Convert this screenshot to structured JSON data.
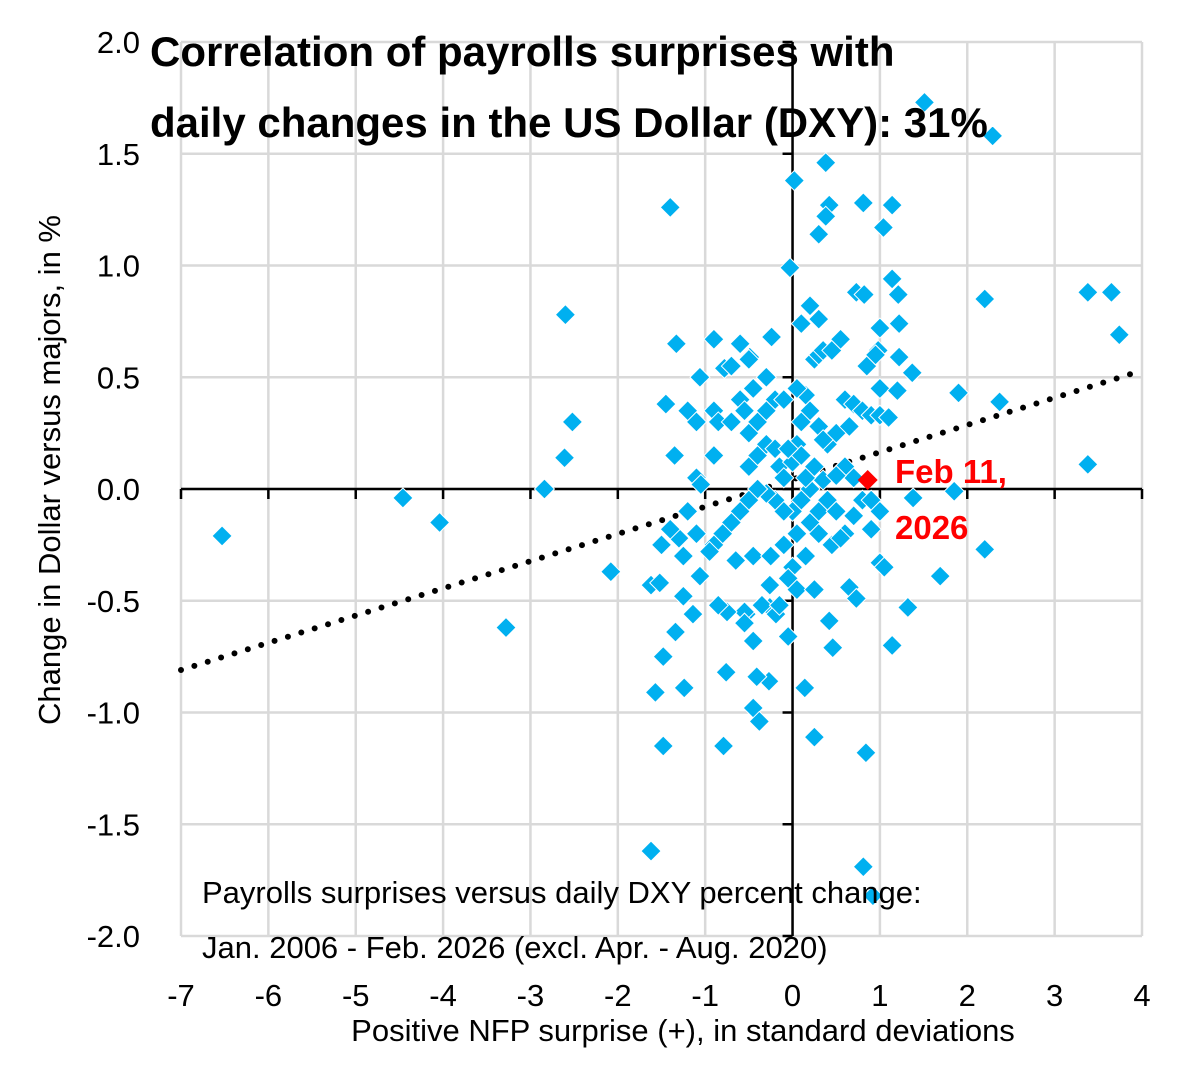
{
  "chart_data": {
    "type": "scatter",
    "title_lines": [
      "Correlation of payrolls surprises with",
      "daily changes in the US Dollar (DXY): 31%"
    ],
    "xlabel": "Positive NFP surprise (+), in standard deviations",
    "ylabel": "Change in Dollar versus majors, in %",
    "note_lines": [
      "Payrolls surprises versus daily DXY percent change:",
      "Jan. 2006 - Feb. 2026 (excl. Apr. - Aug. 2020)"
    ],
    "xlim": [
      -7,
      4
    ],
    "ylim": [
      -2.0,
      2.0
    ],
    "xticks": [
      "-7",
      "-6",
      "-5",
      "-4",
      "-3",
      "-2",
      "-1",
      "0",
      "1",
      "2",
      "3",
      "4"
    ],
    "yticks": [
      "2.0",
      "1.5",
      "1.0",
      "0.5",
      "0.0",
      "-0.5",
      "-1.0",
      "-1.5",
      "-2.0"
    ],
    "grid": true,
    "marker_color": "#00B0F0",
    "highlight_color": "#FF0000",
    "trendline": {
      "style": "dotted",
      "color": "#000000",
      "from": [
        -7,
        -0.81
      ],
      "to": [
        4,
        0.53
      ]
    },
    "highlight": {
      "label_lines": [
        "Feb 11,",
        "2026"
      ],
      "x": 0.86,
      "y": 0.04
    },
    "points": [
      [
        -6.53,
        -0.21
      ],
      [
        -4.46,
        -0.04
      ],
      [
        -4.04,
        -0.15
      ],
      [
        -3.28,
        -0.62
      ],
      [
        -2.84,
        0.0
      ],
      [
        -2.61,
        0.14
      ],
      [
        -2.52,
        0.3
      ],
      [
        -2.6,
        0.78
      ],
      [
        -2.08,
        -0.37
      ],
      [
        -1.62,
        -1.62
      ],
      [
        -1.57,
        -0.91
      ],
      [
        -1.48,
        -1.15
      ],
      [
        -1.48,
        -0.75
      ],
      [
        -1.62,
        -0.43
      ],
      [
        -1.52,
        -0.42
      ],
      [
        -1.4,
        1.26
      ],
      [
        -1.45,
        0.38
      ],
      [
        -1.33,
        0.65
      ],
      [
        -1.24,
        -0.89
      ],
      [
        -1.25,
        -0.48
      ],
      [
        -1.34,
        -0.64
      ],
      [
        -1.14,
        -0.56
      ],
      [
        -1.06,
        -0.39
      ],
      [
        -1.06,
        0.5
      ],
      [
        -0.9,
        0.67
      ],
      [
        -0.79,
        -1.15
      ],
      [
        -0.76,
        -0.82
      ],
      [
        -0.78,
        0.54
      ],
      [
        -0.49,
        0.59
      ],
      [
        -0.24,
        0.68
      ],
      [
        -0.45,
        -0.98
      ],
      [
        -0.38,
        -1.04
      ],
      [
        -0.27,
        -0.86
      ],
      [
        -0.41,
        -0.84
      ],
      [
        -0.26,
        -0.43
      ],
      [
        -0.45,
        -0.68
      ],
      [
        -0.53,
        -0.56
      ],
      [
        -0.26,
        -0.53
      ],
      [
        -0.19,
        -0.56
      ],
      [
        0.3,
        1.14
      ],
      [
        0.38,
        1.46
      ],
      [
        0.02,
        1.38
      ],
      [
        0.42,
        1.27
      ],
      [
        0.38,
        1.22
      ],
      [
        0.81,
        1.28
      ],
      [
        1.14,
        1.27
      ],
      [
        1.04,
        1.17
      ],
      [
        -0.03,
        0.99
      ],
      [
        1.14,
        0.94
      ],
      [
        1.21,
        0.87
      ],
      [
        0.73,
        0.88
      ],
      [
        0.82,
        0.87
      ],
      [
        2.2,
        0.85
      ],
      [
        3.38,
        0.88
      ],
      [
        3.65,
        0.88
      ],
      [
        3.74,
        0.69
      ],
      [
        3.38,
        0.11
      ],
      [
        2.37,
        0.39
      ],
      [
        1.9,
        0.43
      ],
      [
        1.37,
        0.52
      ],
      [
        1.22,
        0.74
      ],
      [
        1.22,
        0.59
      ],
      [
        0.98,
        0.62
      ],
      [
        2.2,
        -0.27
      ],
      [
        1.69,
        -0.39
      ],
      [
        1.32,
        -0.53
      ],
      [
        1.14,
        -0.7
      ],
      [
        1.0,
        -0.33
      ],
      [
        0.84,
        -1.18
      ],
      [
        0.81,
        -1.69
      ],
      [
        0.92,
        -1.82
      ],
      [
        0.25,
        -1.11
      ],
      [
        0.14,
        -0.89
      ],
      [
        0.46,
        -0.71
      ],
      [
        0.42,
        -0.59
      ],
      [
        0.65,
        -0.44
      ],
      [
        0.73,
        -0.49
      ],
      [
        1.85,
        -0.01
      ],
      [
        1.38,
        -0.04
      ],
      [
        1.51,
        1.73
      ],
      [
        2.29,
        1.58
      ],
      [
        -1.2,
        0.35
      ],
      [
        -1.1,
        0.3
      ],
      [
        -0.9,
        0.35
      ],
      [
        -0.85,
        0.3
      ],
      [
        -0.7,
        0.3
      ],
      [
        -0.6,
        0.4
      ],
      [
        -0.55,
        0.35
      ],
      [
        -0.5,
        0.25
      ],
      [
        -0.45,
        0.45
      ],
      [
        -0.4,
        0.3
      ],
      [
        -0.3,
        0.5
      ],
      [
        -0.2,
        0.4
      ],
      [
        -0.1,
        0.4
      ],
      [
        -0.6,
        0.65
      ],
      [
        -0.5,
        0.58
      ],
      [
        -0.3,
        0.35
      ],
      [
        -1.35,
        0.15
      ],
      [
        -1.1,
        0.05
      ],
      [
        -0.9,
        0.15
      ],
      [
        -0.5,
        0.1
      ],
      [
        -0.4,
        0.15
      ],
      [
        -0.3,
        0.2
      ],
      [
        -0.2,
        0.18
      ],
      [
        -0.15,
        0.1
      ],
      [
        -0.1,
        0.05
      ],
      [
        0.0,
        0.12
      ],
      [
        0.05,
        0.2
      ],
      [
        0.1,
        0.15
      ],
      [
        0.15,
        0.42
      ],
      [
        0.2,
        0.35
      ],
      [
        0.25,
        0.58
      ],
      [
        0.3,
        0.6
      ],
      [
        0.35,
        0.62
      ],
      [
        0.45,
        0.62
      ],
      [
        0.55,
        0.67
      ],
      [
        0.6,
        0.4
      ],
      [
        0.7,
        0.38
      ],
      [
        0.8,
        0.35
      ],
      [
        0.9,
        0.33
      ],
      [
        1.0,
        0.33
      ],
      [
        1.1,
        0.32
      ],
      [
        0.5,
        0.25
      ],
      [
        0.65,
        0.28
      ],
      [
        0.4,
        0.2
      ],
      [
        0.3,
        0.28
      ],
      [
        0.1,
        0.3
      ],
      [
        1.0,
        0.45
      ],
      [
        1.2,
        0.44
      ],
      [
        0.85,
        0.55
      ],
      [
        0.95,
        0.6
      ],
      [
        1.0,
        0.72
      ],
      [
        0.1,
        0.74
      ],
      [
        0.2,
        0.82
      ],
      [
        0.3,
        0.76
      ],
      [
        0.35,
        0.04
      ],
      [
        0.2,
        0.0
      ],
      [
        0.1,
        -0.05
      ],
      [
        0.0,
        -0.1
      ],
      [
        -0.1,
        -0.1
      ],
      [
        -0.2,
        -0.05
      ],
      [
        -0.3,
        -0.02
      ],
      [
        -0.4,
        0.0
      ],
      [
        -0.5,
        -0.05
      ],
      [
        -0.6,
        -0.1
      ],
      [
        -0.7,
        -0.15
      ],
      [
        -0.8,
        -0.2
      ],
      [
        -0.9,
        -0.25
      ],
      [
        -1.1,
        -0.2
      ],
      [
        -1.2,
        -0.1
      ],
      [
        -1.3,
        -0.22
      ],
      [
        -1.4,
        -0.18
      ],
      [
        -1.5,
        -0.25
      ],
      [
        -1.25,
        -0.3
      ],
      [
        -0.95,
        -0.28
      ],
      [
        -0.65,
        -0.32
      ],
      [
        -0.45,
        -0.3
      ],
      [
        -0.25,
        -0.3
      ],
      [
        -0.1,
        -0.25
      ],
      [
        0.05,
        -0.2
      ],
      [
        0.2,
        -0.15
      ],
      [
        0.3,
        -0.1
      ],
      [
        0.4,
        -0.05
      ],
      [
        0.5,
        -0.1
      ],
      [
        0.6,
        -0.2
      ],
      [
        0.7,
        -0.12
      ],
      [
        0.8,
        -0.05
      ],
      [
        0.9,
        -0.05
      ],
      [
        1.0,
        -0.1
      ],
      [
        0.45,
        -0.25
      ],
      [
        0.55,
        -0.22
      ],
      [
        0.15,
        -0.3
      ],
      [
        0.0,
        -0.35
      ],
      [
        -0.05,
        -0.4
      ],
      [
        0.05,
        -0.45
      ],
      [
        0.25,
        -0.45
      ],
      [
        -0.05,
        -0.66
      ],
      [
        -0.35,
        -0.52
      ],
      [
        -0.55,
        -0.55
      ],
      [
        -0.75,
        -0.55
      ],
      [
        -0.85,
        -0.52
      ],
      [
        -0.15,
        -0.52
      ],
      [
        -0.55,
        -0.6
      ],
      [
        0.9,
        -0.18
      ],
      [
        1.05,
        -0.35
      ],
      [
        0.15,
        0.05
      ],
      [
        0.25,
        0.1
      ],
      [
        0.35,
        0.22
      ],
      [
        -0.05,
        0.18
      ],
      [
        0.3,
        -0.2
      ],
      [
        0.6,
        0.1
      ],
      [
        0.7,
        0.05
      ],
      [
        0.05,
        0.45
      ],
      [
        -0.7,
        0.55
      ],
      [
        0.5,
        0.06
      ],
      [
        -1.05,
        0.02
      ]
    ]
  }
}
